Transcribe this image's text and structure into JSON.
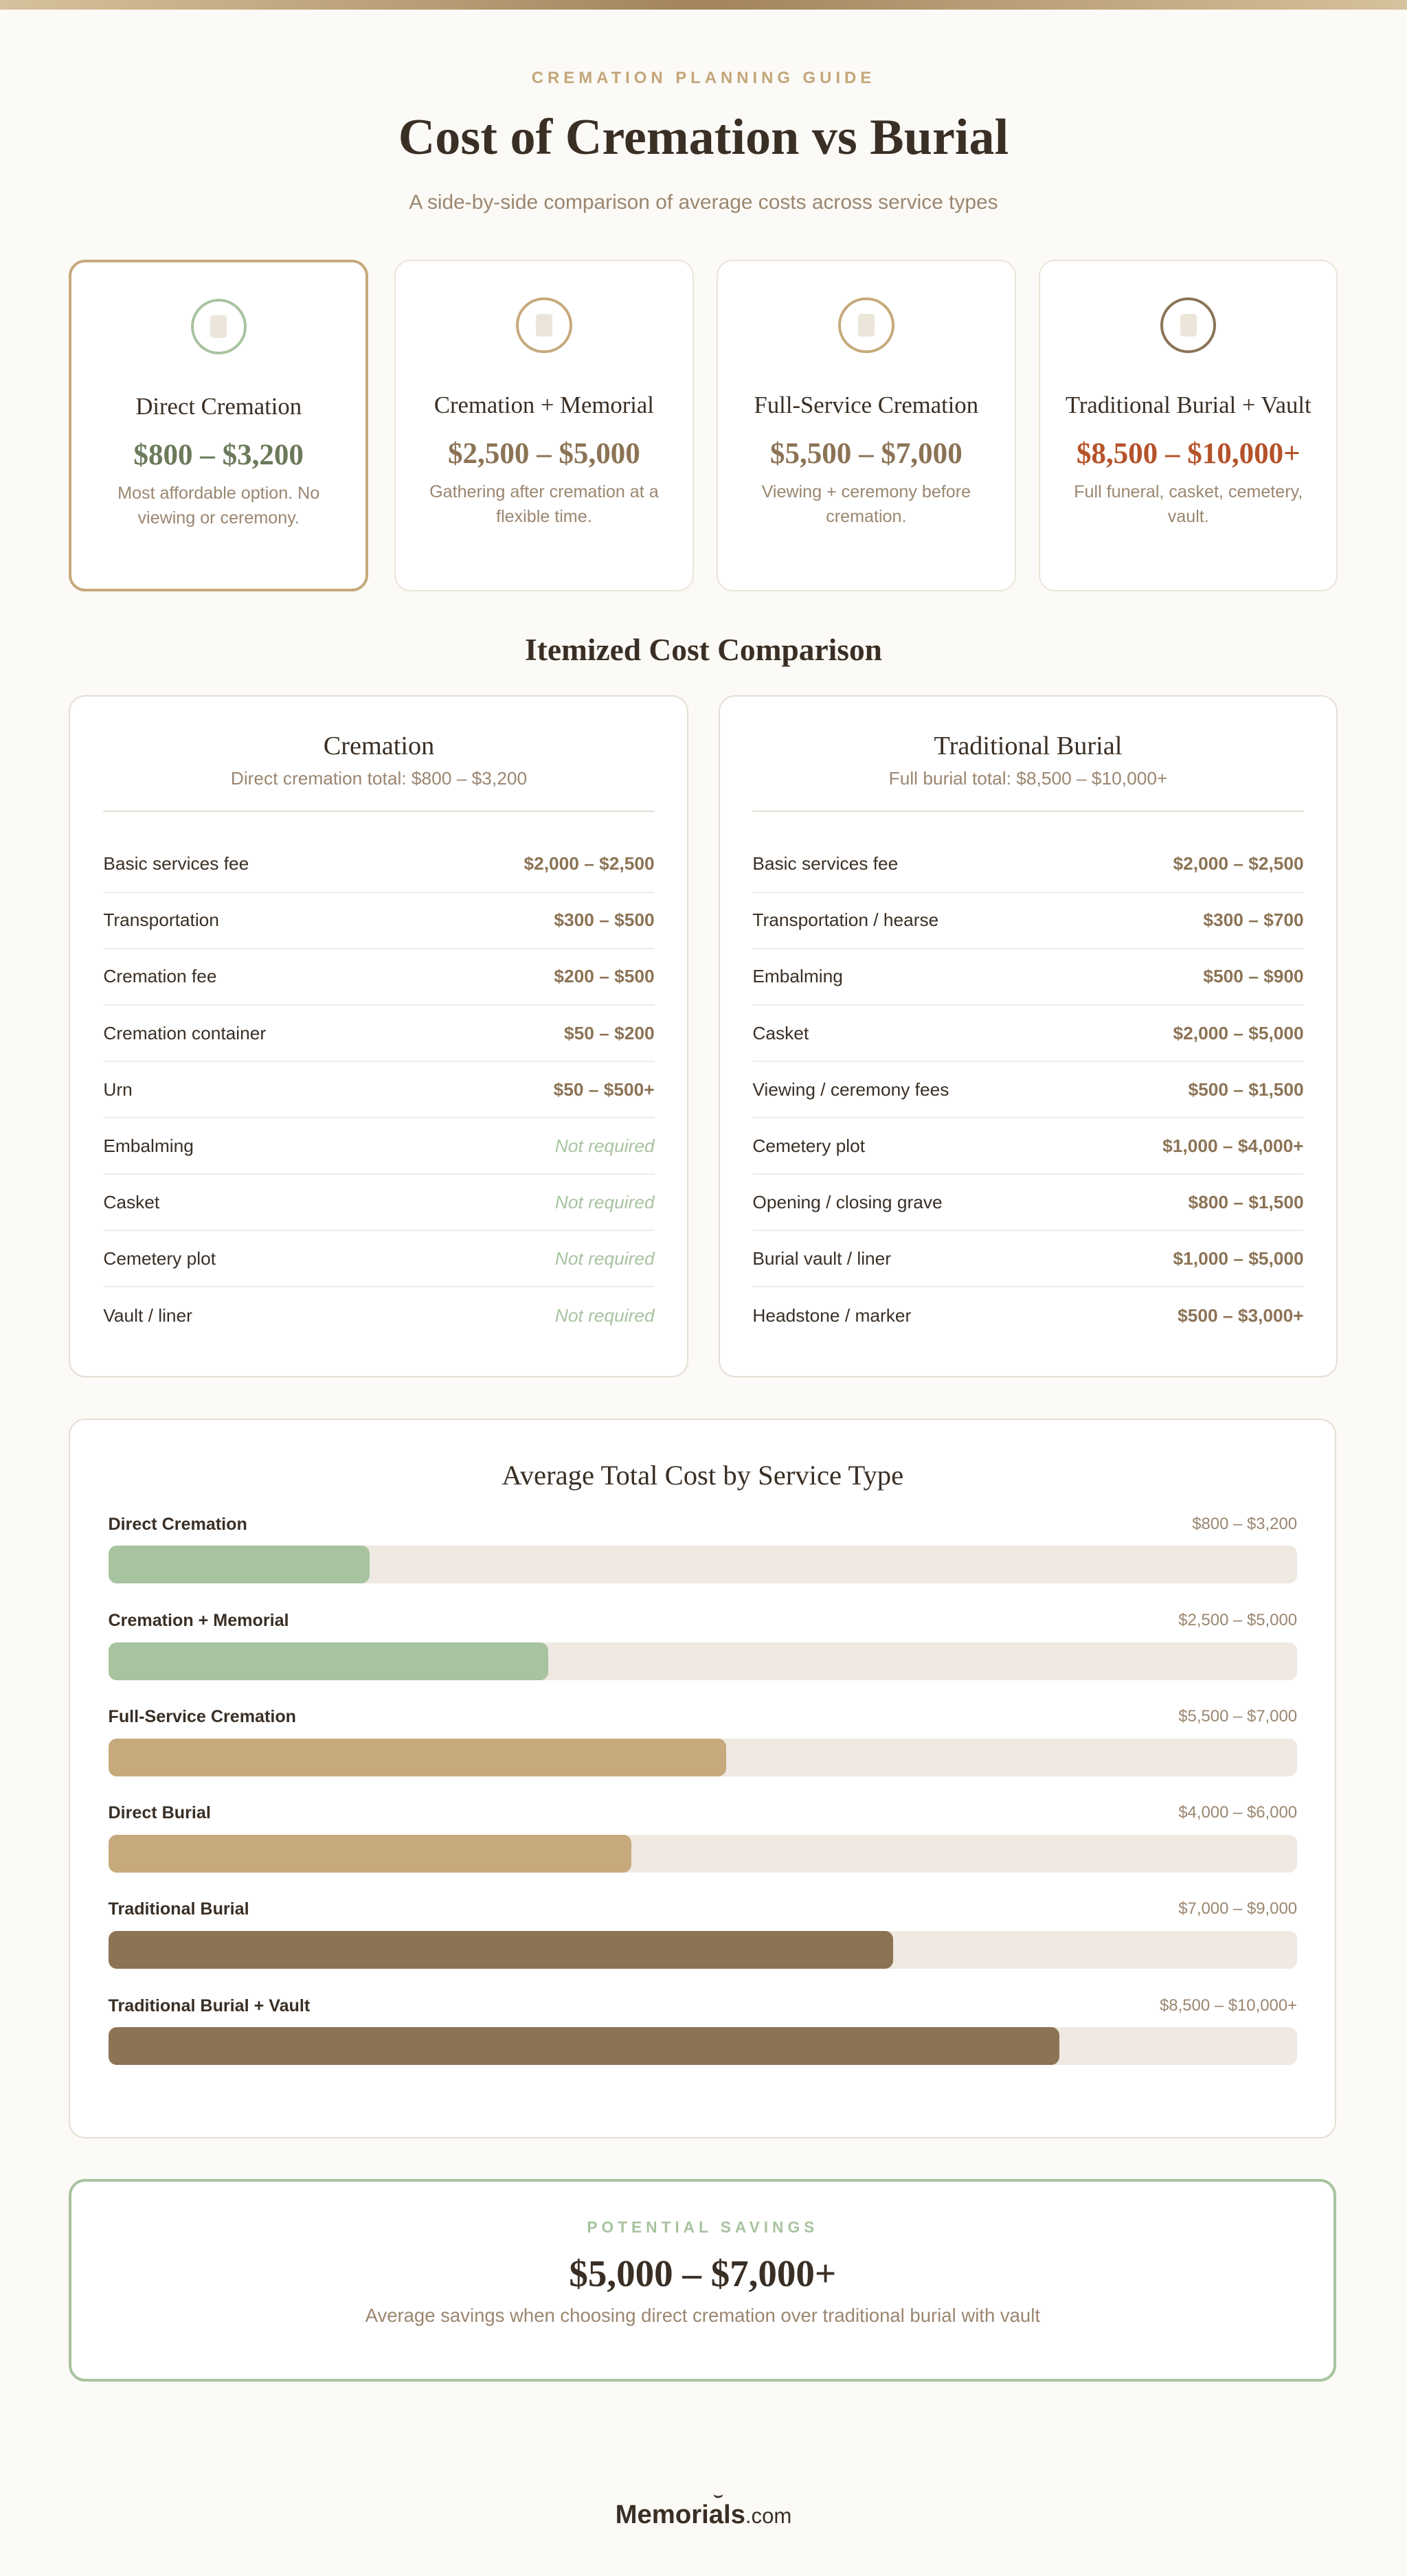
{
  "header": {
    "kicker": "CREMATION PLANNING GUIDE",
    "title": "Cost of Cremation vs Burial",
    "subtitle": "A side-by-side comparison of average costs across service types"
  },
  "cards": [
    {
      "title": "Direct Cremation",
      "price": "$800 – $3,200",
      "desc": "Most affordable option. No viewing or ceremony.",
      "icon": "location-pin-icon",
      "color": "#6b7a5a",
      "ring": "#a8c3a0"
    },
    {
      "title": "Cremation + Memorial",
      "price": "$2,500 – $5,000",
      "desc": "Gathering after cremation at a flexible time.",
      "icon": "document-icon",
      "color": "#8b7355",
      "ring": "#c6a97c"
    },
    {
      "title": "Full-Service Cremation",
      "price": "$5,500 – $7,000",
      "desc": "Viewing + ceremony before cremation.",
      "icon": "urn-icon",
      "color": "#8b7355",
      "ring": "#c6a97c"
    },
    {
      "title": "Traditional Burial + Vault",
      "price": "$8,500 – $10,000+",
      "desc": "Full funeral, casket, cemetery, vault.",
      "icon": "casket-icon",
      "color": "#b5532a",
      "ring": "#8b7355"
    }
  ],
  "itemized": {
    "title": "Itemized Cost Comparison",
    "cremation": {
      "title": "Cremation",
      "total": "Direct cremation total: $800 – $3,200",
      "rows": [
        {
          "label": "Basic services fee",
          "value": "$2,000 – $2,500"
        },
        {
          "label": "Transportation",
          "value": "$300 – $500"
        },
        {
          "label": "Cremation fee",
          "value": "$200 – $500"
        },
        {
          "label": "Cremation container",
          "value": "$50 – $200"
        },
        {
          "label": "Urn",
          "value": "$50 – $500+"
        },
        {
          "label": "Embalming",
          "value": "Not required"
        },
        {
          "label": "Casket",
          "value": "Not required"
        },
        {
          "label": "Cemetery plot",
          "value": "Not required"
        },
        {
          "label": "Vault / liner",
          "value": "Not required"
        }
      ]
    },
    "burial": {
      "title": "Traditional Burial",
      "total": "Full burial total: $8,500 – $10,000+",
      "rows": [
        {
          "label": "Basic services fee",
          "value": "$2,000 – $2,500"
        },
        {
          "label": "Transportation / hearse",
          "value": "$300 – $700"
        },
        {
          "label": "Embalming",
          "value": "$500 – $900"
        },
        {
          "label": "Casket",
          "value": "$2,000 – $5,000"
        },
        {
          "label": "Viewing / ceremony fees",
          "value": "$500 – $1,500"
        },
        {
          "label": "Cemetery plot",
          "value": "$1,000 – $4,000+"
        },
        {
          "label": "Opening / closing grave",
          "value": "$800 – $1,500"
        },
        {
          "label": "Burial vault / liner",
          "value": "$1,000 – $5,000"
        },
        {
          "label": "Headstone / marker",
          "value": "$500 – $3,000+"
        }
      ]
    }
  },
  "chart": {
    "title": "Average Total Cost by Service Type",
    "bars": [
      {
        "label": "Direct Cremation",
        "range": "$800 – $3,200",
        "percent": 22,
        "color": "#a8c3a0"
      },
      {
        "label": "Cremation + Memorial",
        "range": "$2,500 – $5,000",
        "percent": 37,
        "color": "#a8c3a0"
      },
      {
        "label": "Full-Service Cremation",
        "range": "$5,500 – $7,000",
        "percent": 52,
        "color": "#c6a97c"
      },
      {
        "label": "Direct Burial",
        "range": "$4,000 – $6,000",
        "percent": 44,
        "color": "#c6a97c"
      },
      {
        "label": "Traditional Burial",
        "range": "$7,000 – $9,000",
        "percent": 66,
        "color": "#8b7355"
      },
      {
        "label": "Traditional Burial + Vault",
        "range": "$8,500 – $10,000+",
        "percent": 80,
        "color": "#8b7355"
      }
    ]
  },
  "savings": {
    "kicker": "POTENTIAL SAVINGS",
    "amount": "$5,000 – $7,000+",
    "desc": "Average savings when choosing direct cremation over traditional burial with vault"
  },
  "logo": {
    "name": "Memorials",
    "suffix": ".com"
  }
}
